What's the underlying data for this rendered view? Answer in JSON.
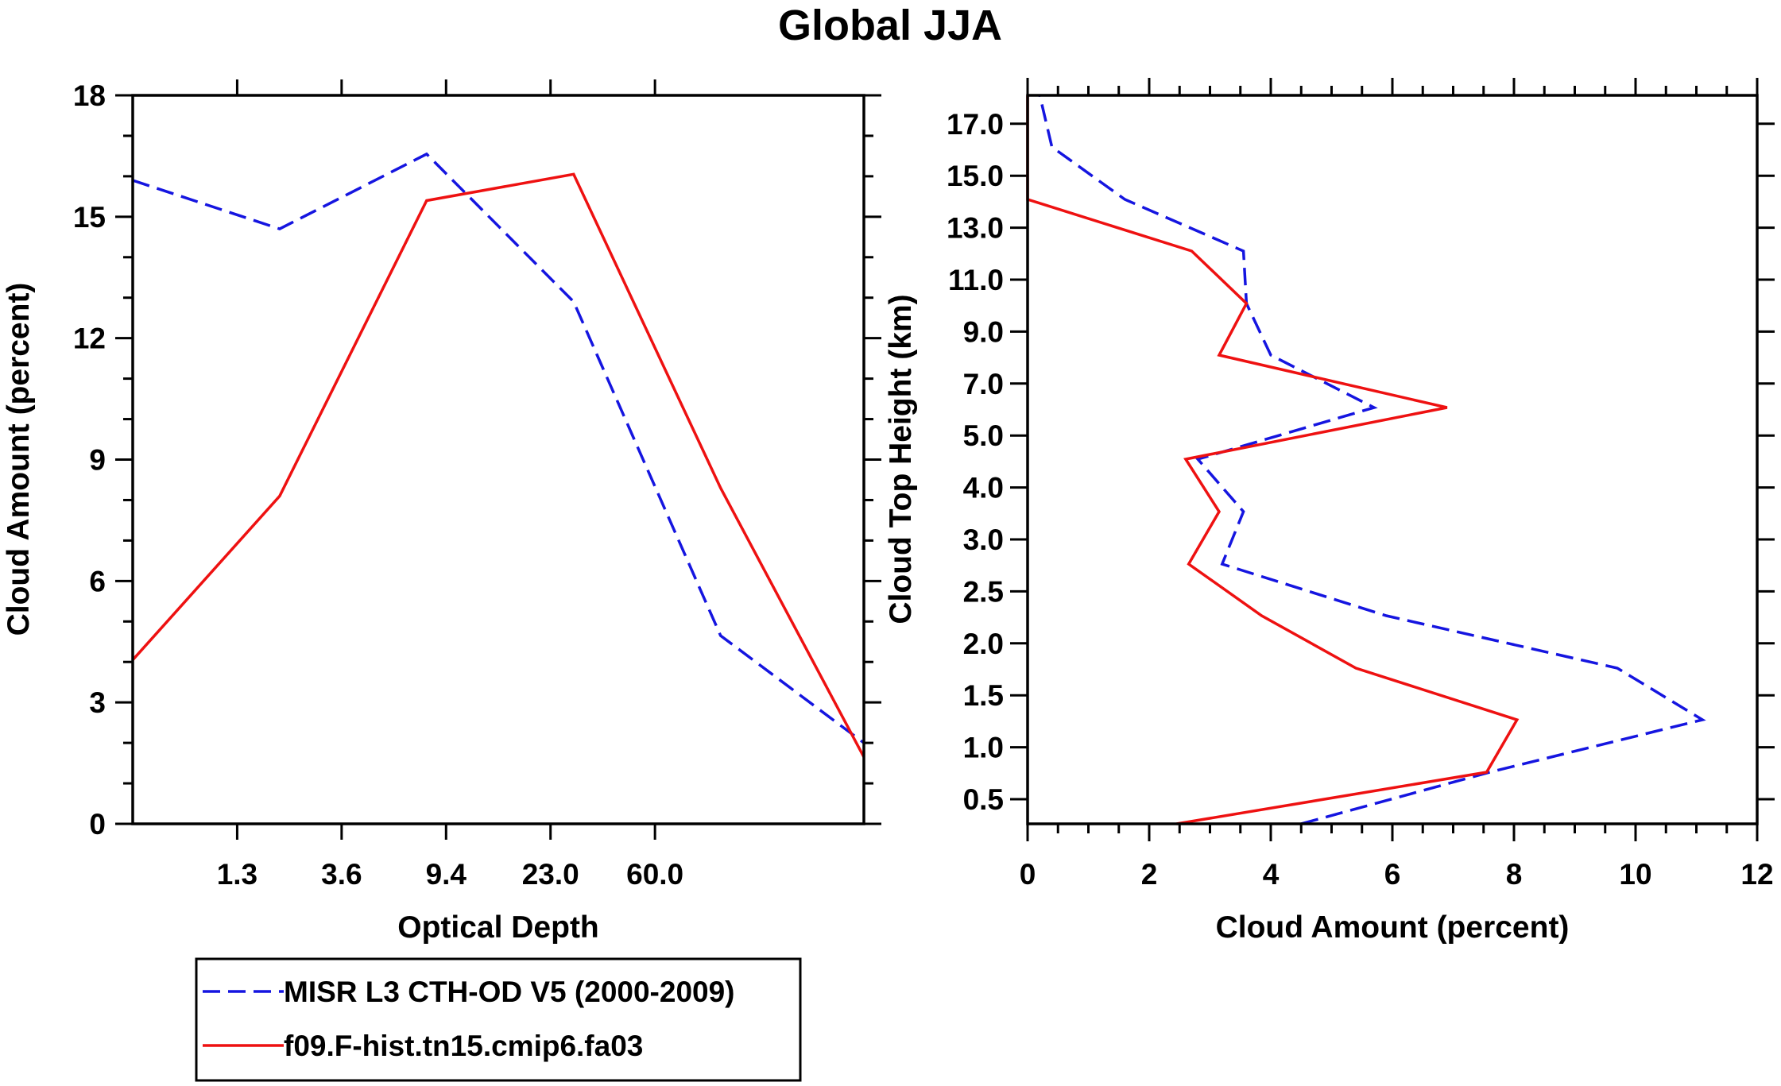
{
  "chart_data": [
    {
      "type": "line",
      "title": "Global JJA",
      "xlabel": "Optical Depth",
      "ylabel": "Cloud Amount (percent)",
      "ylim": [
        0,
        18
      ],
      "yticks": [
        0,
        3,
        6,
        9,
        12,
        15,
        18
      ],
      "x_bins": 7,
      "xtick_labels": [
        "1.3",
        "3.6",
        "9.4",
        "23.0",
        "60.0"
      ],
      "series": [
        {
          "name": "MISR L3 CTH-OD V5 (2000-2009)",
          "color": "#1515e0",
          "style": "dashed",
          "values": [
            15.9,
            14.7,
            16.55,
            12.9,
            4.65,
            2.0
          ]
        },
        {
          "name": "f09.F-hist.tn15.cmip6.fa03",
          "color": "#ee1111",
          "style": "solid",
          "values": [
            4.05,
            8.1,
            15.4,
            16.05,
            8.3,
            1.65
          ]
        }
      ]
    },
    {
      "type": "line",
      "xlabel": "Cloud Amount (percent)",
      "ylabel": "Cloud Top Height (km)",
      "xlim": [
        0,
        12
      ],
      "xticks": [
        0,
        2,
        4,
        6,
        8,
        10,
        12
      ],
      "ytick_labels": [
        "0.5",
        "1.0",
        "1.5",
        "2.0",
        "2.5",
        "3.0",
        "4.0",
        "5.0",
        "7.0",
        "9.0",
        "11.0",
        "13.0",
        "15.0",
        "17.0"
      ],
      "series": [
        {
          "name": "MISR L3 CTH-OD V5 (2000-2009)",
          "color": "#1515e0",
          "style": "dashed",
          "values": [
            4.5,
            7.6,
            11.1,
            9.7,
            5.9,
            3.2,
            3.55,
            2.8,
            5.7,
            4.0,
            3.6,
            3.55,
            1.6,
            0.4,
            0.2
          ]
        },
        {
          "name": "f09.F-hist.tn15.cmip6.fa03",
          "color": "#ee1111",
          "style": "solid",
          "values": [
            2.45,
            7.55,
            8.05,
            5.4,
            3.85,
            2.65,
            3.15,
            2.6,
            6.9,
            3.15,
            3.6,
            2.7,
            0.0,
            0.0,
            0.0
          ]
        }
      ]
    }
  ],
  "legend": {
    "items": [
      {
        "label": "MISR L3 CTH-OD V5 (2000-2009)",
        "color": "#1515e0",
        "style": "dashed"
      },
      {
        "label": "f09.F-hist.tn15.cmip6.fa03",
        "color": "#ee1111",
        "style": "solid"
      }
    ]
  }
}
